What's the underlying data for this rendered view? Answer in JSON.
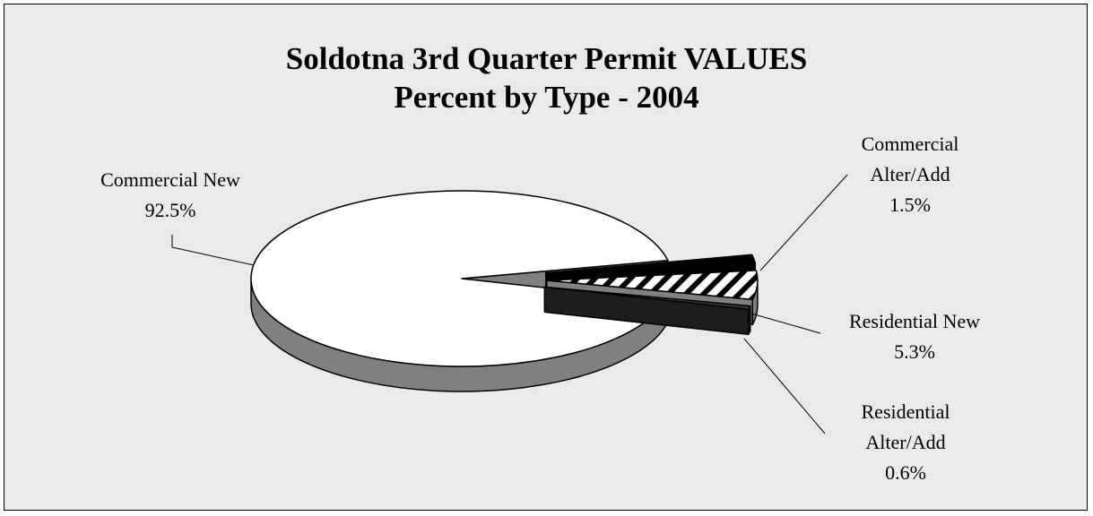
{
  "chart_data": {
    "type": "pie",
    "title": "Soldotna 3rd Quarter Permit VALUES",
    "subtitle": "Percent by Type - 2004",
    "categories": [
      "Commercial New",
      "Commercial Alter/Add",
      "Residential New",
      "Residential Alter/Add"
    ],
    "values": [
      92.5,
      1.5,
      5.3,
      0.6
    ],
    "value_labels": [
      "92.5%",
      "1.5%",
      "5.3%",
      "0.6%"
    ],
    "colors": [
      "#ffffff",
      "#000000",
      "#ffffff",
      "#3a3a3a"
    ],
    "hatched": [
      false,
      false,
      true,
      false
    ]
  }
}
